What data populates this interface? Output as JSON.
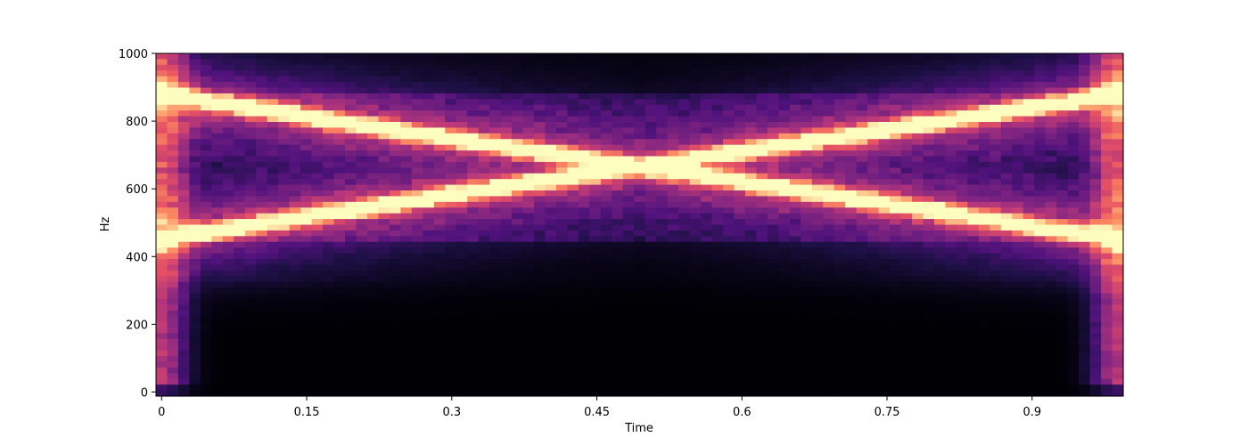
{
  "chart_data": {
    "type": "heatmap",
    "title": "",
    "xlabel": "Time",
    "ylabel": "Hz",
    "xlim": [
      -0.0058,
      0.9942
    ],
    "ylim": [
      -12,
      1000
    ],
    "xticks": [
      0,
      0.15,
      0.3,
      0.45,
      0.6,
      0.75,
      0.9
    ],
    "xtick_labels": [
      "0",
      "0.15",
      "0.3",
      "0.45",
      "0.6",
      "0.75",
      "0.9"
    ],
    "yticks": [
      0,
      200,
      400,
      600,
      800,
      1000
    ],
    "ytick_labels": [
      "0",
      "200",
      "400",
      "600",
      "800",
      "1000"
    ],
    "colormap": "magma",
    "grid": false,
    "legend": "none",
    "series": [
      {
        "time": [
          0.0,
          0.25,
          0.5,
          0.75,
          1.0
        ],
        "freq_hz": [
          450,
          560,
          665,
          770,
          880
        ]
      },
      {
        "time": [
          0.0,
          0.25,
          0.5,
          0.75,
          1.0
        ],
        "freq_hz": [
          880,
          770,
          665,
          560,
          450
        ]
      }
    ],
    "grid_cols": 87,
    "grid_rows": 60
  }
}
